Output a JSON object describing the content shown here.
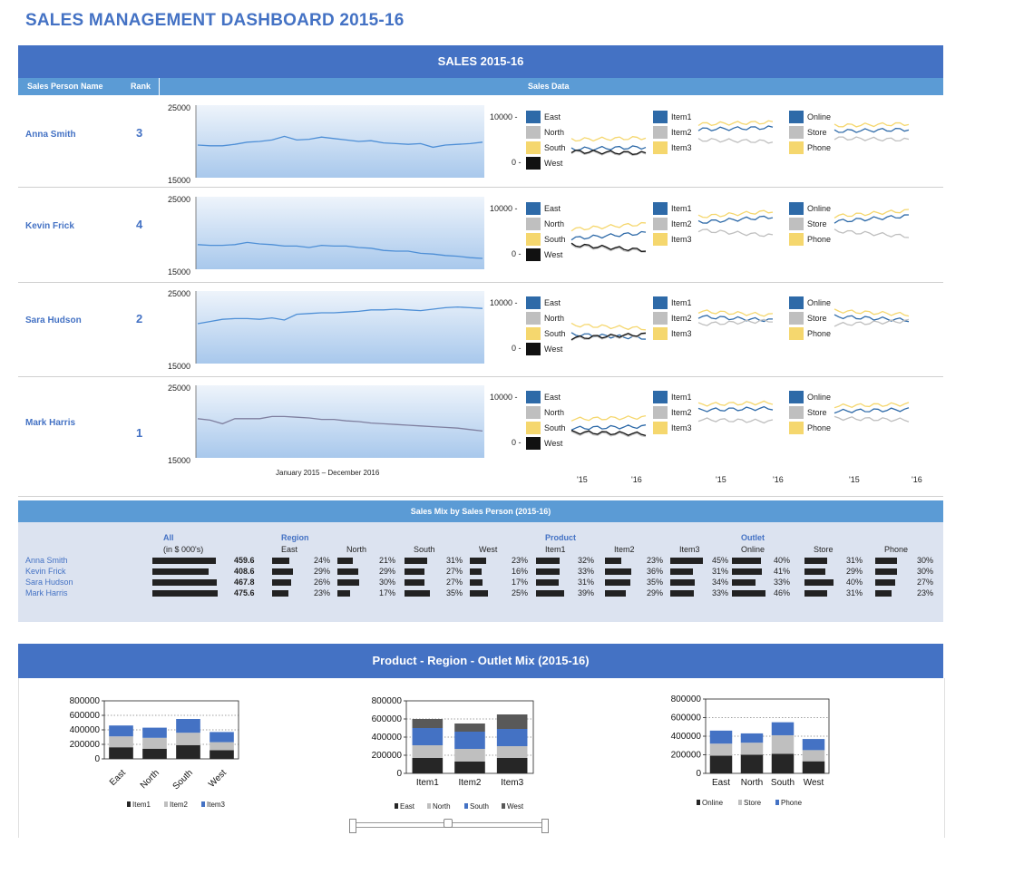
{
  "title": "SALES MANAGEMENT DASHBOARD 2015-16",
  "sales_band": "SALES 2015-16",
  "col_headers": {
    "name": "Sales Person Name",
    "rank": "Rank",
    "data": "Sales Data"
  },
  "spark_axis": {
    "top": "25000",
    "bottom": "15000"
  },
  "small_axis": {
    "top": "10000 -",
    "bottom": "0 -"
  },
  "period_label": "January 2015 – December 2016",
  "year_ticks": [
    "'15",
    "'16"
  ],
  "legend_groups": [
    {
      "items": [
        "East",
        "North",
        "South",
        "West"
      ],
      "colors": [
        "#2e6aa8",
        "#bfbfbf",
        "#f5d76e",
        "#111111"
      ]
    },
    {
      "items": [
        "Item1",
        "Item2",
        "Item3"
      ],
      "colors": [
        "#2e6aa8",
        "#bfbfbf",
        "#f5d76e"
      ]
    },
    {
      "items": [
        "Online",
        "Store",
        "Phone"
      ],
      "colors": [
        "#2e6aa8",
        "#bfbfbf",
        "#f5d76e"
      ]
    }
  ],
  "people": [
    {
      "name": "Anna Smith",
      "rank": "3",
      "trend": [
        19500,
        19400,
        19400,
        19600,
        19900,
        20000,
        20200,
        20700,
        20200,
        20300,
        20600,
        20400,
        20200,
        20000,
        20100,
        19800,
        19700,
        19600,
        19700,
        19200,
        19500,
        19600,
        19700,
        19900
      ]
    },
    {
      "name": "Kevin Frick",
      "rank": "4",
      "trend": [
        18400,
        18300,
        18300,
        18400,
        18700,
        18500,
        18400,
        18200,
        18200,
        18000,
        18300,
        18200,
        18200,
        18000,
        17900,
        17600,
        17500,
        17500,
        17200,
        17100,
        16900,
        16800,
        16600,
        16500
      ]
    },
    {
      "name": "Sara Hudson",
      "rank": "2",
      "trend": [
        20500,
        20800,
        21100,
        21200,
        21200,
        21100,
        21300,
        21000,
        21800,
        21900,
        22000,
        22000,
        22100,
        22200,
        22400,
        22400,
        22500,
        22400,
        22300,
        22500,
        22700,
        22800,
        22700,
        22600
      ]
    },
    {
      "name": "Mark Harris",
      "rank": "1",
      "trend": [
        20400,
        20200,
        19700,
        20400,
        20400,
        20400,
        20700,
        20700,
        20600,
        20500,
        20300,
        20300,
        20100,
        20000,
        19800,
        19700,
        19600,
        19500,
        19400,
        19300,
        19200,
        19100,
        18900,
        18700
      ]
    }
  ],
  "mix_band": "Sales Mix by Sales Person (2015-16)",
  "mix": {
    "groups": {
      "all": "All",
      "region": "Region",
      "product": "Product",
      "outlet": "Outlet"
    },
    "units": "(in $ 000's)",
    "sub": [
      "East",
      "North",
      "South",
      "West",
      "Item1",
      "Item2",
      "Item3",
      "Online",
      "Store",
      "Phone"
    ],
    "rows": [
      {
        "name": "Anna Smith",
        "total": "459.6",
        "pcts": [
          "24%",
          "21%",
          "31%",
          "23%",
          "32%",
          "23%",
          "45%",
          "40%",
          "31%",
          "30%"
        ]
      },
      {
        "name": "Kevin Frick",
        "total": "408.6",
        "pcts": [
          "29%",
          "29%",
          "27%",
          "16%",
          "33%",
          "36%",
          "31%",
          "41%",
          "29%",
          "30%"
        ]
      },
      {
        "name": "Sara Hudson",
        "total": "467.8",
        "pcts": [
          "26%",
          "30%",
          "27%",
          "17%",
          "31%",
          "35%",
          "34%",
          "33%",
          "40%",
          "27%"
        ]
      },
      {
        "name": "Mark Harris",
        "total": "475.6",
        "pcts": [
          "23%",
          "17%",
          "35%",
          "25%",
          "39%",
          "29%",
          "33%",
          "46%",
          "31%",
          "23%"
        ]
      }
    ]
  },
  "mix_band2": "Product - Region - Outlet Mix (2015-16)",
  "chart_data": [
    {
      "type": "bar",
      "stacked": true,
      "categories": [
        "East",
        "North",
        "South",
        "West"
      ],
      "series": [
        {
          "name": "Item1",
          "values": [
            160000,
            140000,
            190000,
            120000
          ]
        },
        {
          "name": "Item2",
          "values": [
            150000,
            150000,
            170000,
            110000
          ]
        },
        {
          "name": "Item3",
          "values": [
            150000,
            140000,
            190000,
            140000
          ]
        }
      ],
      "ylim": [
        0,
        800000
      ],
      "yticks": [
        "800000",
        "600000",
        "400000",
        "200000",
        "0"
      ],
      "legend": "bottom"
    },
    {
      "type": "bar",
      "stacked": true,
      "categories": [
        "Item1",
        "Item2",
        "Item3"
      ],
      "series": [
        {
          "name": "East",
          "values": [
            170000,
            130000,
            170000
          ]
        },
        {
          "name": "North",
          "values": [
            140000,
            140000,
            130000
          ]
        },
        {
          "name": "South",
          "values": [
            190000,
            190000,
            190000
          ]
        },
        {
          "name": "West",
          "values": [
            100000,
            90000,
            160000
          ]
        }
      ],
      "ylim": [
        0,
        800000
      ],
      "yticks": [
        "800000",
        "600000",
        "400000",
        "200000",
        "0"
      ],
      "legend": "bottom"
    },
    {
      "type": "bar",
      "stacked": true,
      "categories": [
        "East",
        "North",
        "South",
        "West"
      ],
      "series": [
        {
          "name": "Online",
          "values": [
            190000,
            200000,
            210000,
            130000
          ]
        },
        {
          "name": "Store",
          "values": [
            130000,
            130000,
            200000,
            120000
          ]
        },
        {
          "name": "Phone",
          "values": [
            140000,
            100000,
            140000,
            120000
          ]
        }
      ],
      "ylim": [
        0,
        800000
      ],
      "yticks": [
        "800000",
        "600000",
        "400000",
        "200000",
        "0"
      ],
      "legend": "bottom"
    }
  ],
  "colors": {
    "accent": "#4472c4",
    "sub": "#5b9bd5",
    "dark": "#262626",
    "grey": "#bfbfbf",
    "blue": "#4472c4"
  }
}
